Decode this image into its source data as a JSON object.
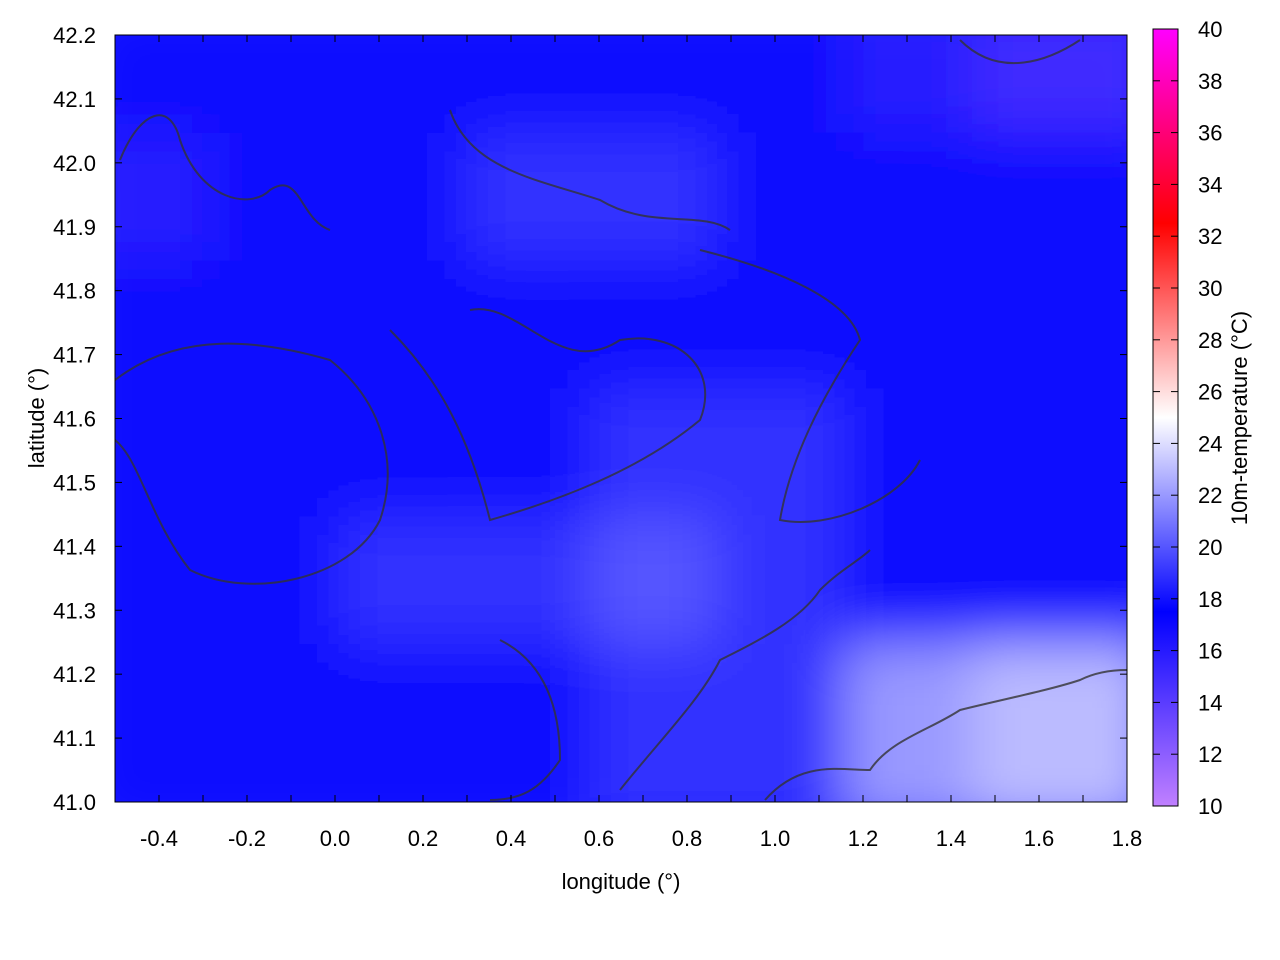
{
  "chart_data": {
    "type": "heatmap",
    "title": "",
    "xlabel": "longitude (°)",
    "ylabel": "latitude (°)",
    "xlim": [
      -0.5,
      1.8
    ],
    "ylim": [
      41.0,
      42.2
    ],
    "xticks": [
      "-0.4",
      "-0.2",
      "0.0",
      "0.2",
      "0.4",
      "0.6",
      "0.8",
      "1.0",
      "1.2",
      "1.4",
      "1.6",
      "1.8"
    ],
    "yticks": [
      "41.0",
      "41.1",
      "41.2",
      "41.3",
      "41.4",
      "41.5",
      "41.6",
      "41.7",
      "41.8",
      "41.9",
      "42.0",
      "42.1",
      "42.2"
    ],
    "colorbar": {
      "label": "10m-temperature (°C)",
      "range": [
        10,
        40
      ],
      "ticks": [
        "10",
        "12",
        "14",
        "16",
        "18",
        "20",
        "22",
        "24",
        "26",
        "28",
        "30",
        "32",
        "34",
        "36",
        "38",
        "40"
      ],
      "stops": [
        {
          "value": 10,
          "color": "#c080ff"
        },
        {
          "value": 17.5,
          "color": "#0000ff"
        },
        {
          "value": 25,
          "color": "#ffffff"
        },
        {
          "value": 32.5,
          "color": "#ff0000"
        },
        {
          "value": 40,
          "color": "#ff00ff"
        }
      ]
    },
    "grid": {
      "lat_centers": [
        42.1,
        41.9,
        41.7,
        41.5,
        41.3,
        41.1
      ],
      "lon_centers": [
        -0.36,
        -0.07,
        0.22,
        0.51,
        0.79,
        1.08,
        1.37,
        1.66
      ],
      "values": [
        [
          17,
          17,
          17,
          18,
          18,
          17,
          16,
          15
        ],
        [
          16,
          17,
          17,
          19,
          19,
          17,
          17,
          17
        ],
        [
          17,
          17,
          17,
          18,
          17,
          17,
          18,
          17
        ],
        [
          18,
          17,
          17,
          18,
          19,
          19,
          18,
          17
        ],
        [
          17,
          18,
          19,
          19,
          20,
          19,
          18,
          17
        ],
        [
          17,
          18,
          17,
          18,
          19,
          19,
          22,
          23
        ]
      ]
    },
    "contours": "dark gray isolines overlaid"
  }
}
